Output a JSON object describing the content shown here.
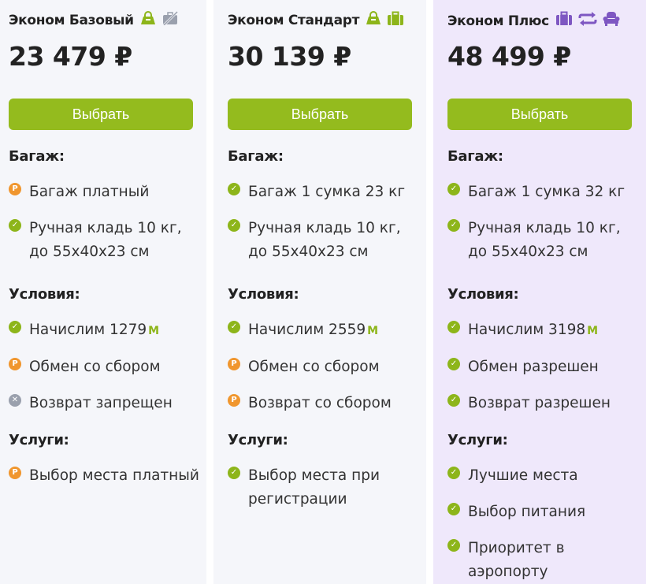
{
  "colors": {
    "accent": "#94bb1e",
    "ok": "#8db51a",
    "paid": "#f0962e",
    "forbidden": "#9aa0ad",
    "plus_icons": "#7e57c2"
  },
  "tariffs": [
    {
      "name": "Эконом Базовый",
      "icons": [
        "hand-bag-icon",
        "no-baggage-icon"
      ],
      "price": "23 479 ₽",
      "button": "Выбрать",
      "baggage_title": "Багаж:",
      "baggage": [
        {
          "status": "paid",
          "text": "Багаж платный"
        },
        {
          "status": "ok",
          "text": "Ручная кладь 10 кг, до 55x40x23 см"
        }
      ],
      "conditions_title": "Условия:",
      "conditions": [
        {
          "status": "ok",
          "text": "Начислим 1279",
          "miles": "M"
        },
        {
          "status": "paid",
          "text": "Обмен со сбором"
        },
        {
          "status": "no",
          "text": "Возврат запрещен"
        }
      ],
      "services_title": "Услуги:",
      "services": [
        {
          "status": "paid",
          "text": "Выбор места платный"
        }
      ]
    },
    {
      "name": "Эконом Стандарт",
      "icons": [
        "hand-bag-icon",
        "suitcase-icon"
      ],
      "price": "30 139 ₽",
      "button": "Выбрать",
      "baggage_title": "Багаж:",
      "baggage": [
        {
          "status": "ok",
          "text": "Багаж 1 сумка 23 кг"
        },
        {
          "status": "ok",
          "text": "Ручная кладь 10 кг, до 55x40x23 см"
        }
      ],
      "conditions_title": "Условия:",
      "conditions": [
        {
          "status": "ok",
          "text": "Начислим 2559",
          "miles": "M"
        },
        {
          "status": "paid",
          "text": "Обмен со сбором"
        },
        {
          "status": "paid",
          "text": "Возврат со сбором"
        }
      ],
      "services_title": "Услуги:",
      "services": [
        {
          "status": "ok",
          "text": "Выбор места при регистрации"
        }
      ]
    },
    {
      "name": "Эконом Плюс",
      "icons": [
        "suitcase-icon",
        "exchange-icon",
        "armchair-icon"
      ],
      "price": "48 499 ₽",
      "button": "Выбрать",
      "baggage_title": "Багаж:",
      "baggage": [
        {
          "status": "ok",
          "text": "Багаж 1 сумка 32 кг"
        },
        {
          "status": "ok",
          "text": "Ручная кладь 10 кг, до 55x40x23 см"
        }
      ],
      "conditions_title": "Условия:",
      "conditions": [
        {
          "status": "ok",
          "text": "Начислим 3198",
          "miles": "M"
        },
        {
          "status": "ok",
          "text": "Обмен разрешен"
        },
        {
          "status": "ok",
          "text": "Возврат разрешен"
        }
      ],
      "services_title": "Услуги:",
      "services": [
        {
          "status": "ok",
          "text": "Лучшие места"
        },
        {
          "status": "ok",
          "text": "Выбор питания"
        },
        {
          "status": "ok",
          "text": "Приоритет в аэропорту"
        }
      ]
    }
  ]
}
